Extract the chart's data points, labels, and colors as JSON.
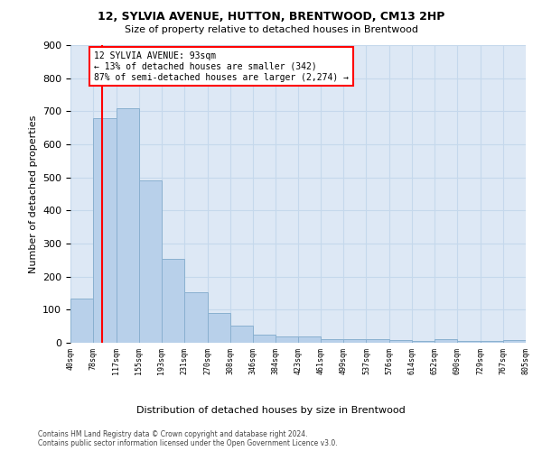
{
  "title1": "12, SYLVIA AVENUE, HUTTON, BRENTWOOD, CM13 2HP",
  "title2": "Size of property relative to detached houses in Brentwood",
  "xlabel": "Distribution of detached houses by size in Brentwood",
  "ylabel": "Number of detached properties",
  "bar_color": "#b8d0ea",
  "bar_edge_color": "#8ab0d0",
  "grid_color": "#c5d8ec",
  "background_color": "#dde8f5",
  "property_line_x": 93,
  "property_line_color": "red",
  "annotation_text": "12 SYLVIA AVENUE: 93sqm\n← 13% of detached houses are smaller (342)\n87% of semi-detached houses are larger (2,274) →",
  "annotation_box_color": "white",
  "annotation_box_edge": "red",
  "bin_edges": [
    40,
    78,
    117,
    155,
    193,
    231,
    270,
    308,
    346,
    384,
    423,
    461,
    499,
    537,
    576,
    614,
    652,
    690,
    729,
    767,
    805
  ],
  "bar_heights": [
    135,
    680,
    710,
    492,
    253,
    153,
    89,
    53,
    25,
    20,
    20,
    12,
    12,
    12,
    8,
    5,
    12,
    5,
    5,
    8
  ],
  "tick_labels": [
    "40sqm",
    "78sqm",
    "117sqm",
    "155sqm",
    "193sqm",
    "231sqm",
    "270sqm",
    "308sqm",
    "346sqm",
    "384sqm",
    "423sqm",
    "461sqm",
    "499sqm",
    "537sqm",
    "576sqm",
    "614sqm",
    "652sqm",
    "690sqm",
    "729sqm",
    "767sqm",
    "805sqm"
  ],
  "footnote1": "Contains HM Land Registry data © Crown copyright and database right 2024.",
  "footnote2": "Contains public sector information licensed under the Open Government Licence v3.0.",
  "ylim": [
    0,
    900
  ],
  "xlim": [
    40,
    805
  ]
}
